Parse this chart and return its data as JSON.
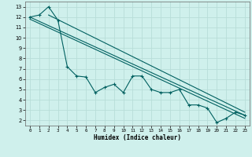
{
  "xlabel": "Humidex (Indice chaleur)",
  "bg_color": "#cff0ec",
  "grid_color": "#b8ddd8",
  "line_color": "#006060",
  "xlim": [
    -0.5,
    23.5
  ],
  "ylim": [
    1.5,
    13.5
  ],
  "yticks": [
    2,
    3,
    4,
    5,
    6,
    7,
    8,
    9,
    10,
    11,
    12,
    13
  ],
  "xticks": [
    0,
    1,
    2,
    3,
    4,
    5,
    6,
    7,
    8,
    9,
    10,
    11,
    12,
    13,
    14,
    15,
    16,
    17,
    18,
    19,
    20,
    21,
    22,
    23
  ],
  "series1_x": [
    0,
    1,
    2,
    3,
    4,
    5,
    6,
    7,
    8,
    9,
    10,
    11,
    12,
    13,
    14,
    15,
    16,
    17,
    18,
    19,
    20,
    21,
    22,
    23
  ],
  "series1_y": [
    12.0,
    12.2,
    13.0,
    11.7,
    7.2,
    6.3,
    6.2,
    4.7,
    5.2,
    5.5,
    4.7,
    6.3,
    6.3,
    5.0,
    4.7,
    4.7,
    5.0,
    3.5,
    3.5,
    3.2,
    1.8,
    2.2,
    2.8,
    2.5
  ],
  "line1_x": [
    0,
    23
  ],
  "line1_y": [
    12.0,
    2.5
  ],
  "line2_x": [
    0,
    23
  ],
  "line2_y": [
    11.8,
    2.2
  ],
  "line3_x": [
    2,
    23
  ],
  "line3_y": [
    12.2,
    2.8
  ]
}
